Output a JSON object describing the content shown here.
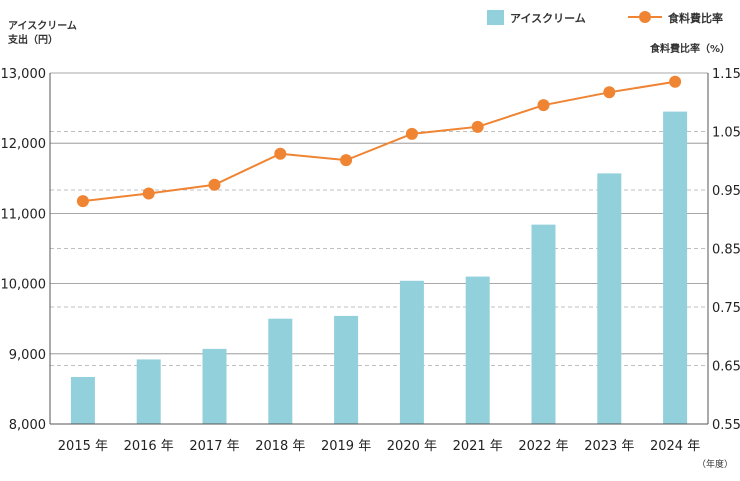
{
  "chart_data": {
    "type": "bar+line",
    "categories": [
      "2015 年",
      "2016 年",
      "2017 年",
      "2018 年",
      "2019 年",
      "2020 年",
      "2021 年",
      "2022 年",
      "2023 年",
      "2024 年"
    ],
    "series": [
      {
        "name": "アイスクリーム",
        "axis": "left",
        "kind": "bar",
        "values": [
          8670,
          8920,
          9070,
          9500,
          9540,
          10040,
          10100,
          10840,
          11570,
          12450
        ]
      },
      {
        "name": "食料費比率",
        "axis": "right",
        "kind": "line",
        "values": [
          0.931,
          0.944,
          0.959,
          1.012,
          1.001,
          1.046,
          1.058,
          1.095,
          1.117,
          1.135
        ]
      }
    ],
    "y_left": {
      "label_line1": "アイスクリーム",
      "label_line2": "支出（円）",
      "min": 8000,
      "max": 13000,
      "ticks": [
        8000,
        9000,
        10000,
        11000,
        12000,
        13000
      ],
      "tick_labels": [
        "8,000",
        "9,000",
        "10,000",
        "11,000",
        "12,000",
        "13,000"
      ]
    },
    "y_right": {
      "label": "食料費比率（%）",
      "min": 0.55,
      "max": 1.15,
      "ticks": [
        0.55,
        0.65,
        0.75,
        0.85,
        0.95,
        1.05,
        1.15
      ],
      "tick_labels": [
        "0.55",
        "0.65",
        "0.75",
        "0.85",
        "0.95",
        "1.05",
        "1.15"
      ]
    },
    "x_unit": "（年度）",
    "legend": {
      "position": "top-right",
      "bar_label": "アイスクリーム",
      "line_label": "食料費比率"
    },
    "colors": {
      "bar": "#92d0dc",
      "line": "#ef8433",
      "grid_solid": "#8c8c8c",
      "grid_dashed": "#aaaaaa"
    }
  }
}
